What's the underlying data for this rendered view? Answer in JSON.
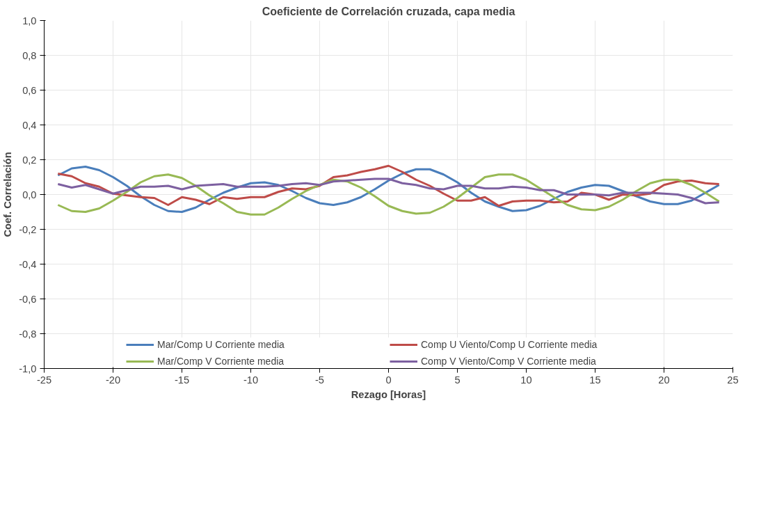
{
  "chart_data": {
    "type": "line",
    "title": "Coeficiente de Correlación cruzada, capa media",
    "xlabel": "Rezago [Horas]",
    "ylabel": "Coef. Correlación",
    "x": [
      -24,
      -23,
      -22,
      -21,
      -20,
      -19,
      -18,
      -17,
      -16,
      -15,
      -14,
      -13,
      -12,
      -11,
      -10,
      -9,
      -8,
      -7,
      -6,
      -5,
      -4,
      -3,
      -2,
      -1,
      0,
      1,
      2,
      3,
      4,
      5,
      6,
      7,
      8,
      9,
      10,
      11,
      12,
      13,
      14,
      15,
      16,
      17,
      18,
      19,
      20,
      21,
      22,
      23,
      24
    ],
    "series": [
      {
        "name": "Mar/Comp U Corriente media",
        "color": "#4a7ebb",
        "values": [
          0.11,
          0.15,
          0.16,
          0.14,
          0.1,
          0.05,
          -0.01,
          -0.06,
          -0.095,
          -0.1,
          -0.075,
          -0.03,
          0.01,
          0.04,
          0.065,
          0.07,
          0.055,
          0.02,
          -0.02,
          -0.05,
          -0.06,
          -0.045,
          -0.015,
          0.03,
          0.08,
          0.12,
          0.145,
          0.145,
          0.115,
          0.07,
          0.01,
          -0.04,
          -0.07,
          -0.095,
          -0.09,
          -0.065,
          -0.025,
          0.015,
          0.04,
          0.055,
          0.05,
          0.02,
          -0.01,
          -0.04,
          -0.055,
          -0.055,
          -0.035,
          0.01,
          0.055
        ]
      },
      {
        "name": "Comp U Viento/Comp U Corriente media",
        "color": "#be4b48",
        "values": [
          0.12,
          0.105,
          0.065,
          0.045,
          0.005,
          -0.005,
          -0.015,
          -0.02,
          -0.06,
          -0.015,
          -0.03,
          -0.055,
          -0.015,
          -0.025,
          -0.015,
          -0.015,
          0.015,
          0.035,
          0.03,
          0.05,
          0.1,
          0.11,
          0.13,
          0.145,
          0.165,
          0.13,
          0.085,
          0.05,
          0.005,
          -0.035,
          -0.035,
          -0.015,
          -0.065,
          -0.04,
          -0.035,
          -0.035,
          -0.045,
          -0.04,
          0.01,
          0.0,
          -0.03,
          0.0,
          -0.005,
          0.005,
          0.055,
          0.075,
          0.08,
          0.065,
          0.06
        ]
      },
      {
        "name": "Mar/Comp V Corriente media",
        "color": "#98b954",
        "values": [
          -0.06,
          -0.095,
          -0.1,
          -0.08,
          -0.035,
          0.015,
          0.07,
          0.105,
          0.115,
          0.095,
          0.05,
          -0.005,
          -0.05,
          -0.1,
          -0.115,
          -0.115,
          -0.075,
          -0.025,
          0.02,
          0.055,
          0.085,
          0.075,
          0.04,
          -0.01,
          -0.065,
          -0.095,
          -0.11,
          -0.105,
          -0.07,
          -0.02,
          0.04,
          0.1,
          0.115,
          0.115,
          0.085,
          0.035,
          -0.015,
          -0.06,
          -0.085,
          -0.09,
          -0.07,
          -0.03,
          0.02,
          0.065,
          0.085,
          0.085,
          0.055,
          0.01,
          -0.04
        ]
      },
      {
        "name": "Comp V Viento/Comp V Corriente media",
        "color": "#7d60a0",
        "values": [
          0.06,
          0.04,
          0.055,
          0.03,
          0.005,
          0.025,
          0.045,
          0.045,
          0.05,
          0.03,
          0.05,
          0.055,
          0.06,
          0.045,
          0.045,
          0.045,
          0.05,
          0.06,
          0.065,
          0.055,
          0.075,
          0.08,
          0.085,
          0.09,
          0.09,
          0.065,
          0.055,
          0.035,
          0.03,
          0.05,
          0.05,
          0.035,
          0.035,
          0.045,
          0.04,
          0.025,
          0.025,
          0.0,
          0.0,
          0.0,
          -0.005,
          0.01,
          0.01,
          0.01,
          0.005,
          0.0,
          -0.02,
          -0.05,
          -0.045
        ]
      }
    ],
    "xlim": [
      -25,
      25
    ],
    "xticks": [
      -25,
      -20,
      -15,
      -10,
      -5,
      0,
      5,
      10,
      15,
      20,
      25
    ],
    "ylim": [
      -1,
      1
    ],
    "yticks": [
      {
        "value": -1,
        "label": "-1,0"
      },
      {
        "value": -0.8,
        "label": "-0,8"
      },
      {
        "value": -0.6,
        "label": "-0,6"
      },
      {
        "value": -0.4,
        "label": "-0,4"
      },
      {
        "value": -0.2,
        "label": "-0,2"
      },
      {
        "value": 0,
        "label": "0,0"
      },
      {
        "value": 0.2,
        "label": "0,2"
      },
      {
        "value": 0.4,
        "label": "0,4"
      },
      {
        "value": 0.6,
        "label": "0,6"
      },
      {
        "value": 0.8,
        "label": "0,8"
      },
      {
        "value": 1,
        "label": "1,0"
      }
    ],
    "grid": true,
    "legend": "bottom",
    "marker": "none",
    "line_style": "solid"
  }
}
